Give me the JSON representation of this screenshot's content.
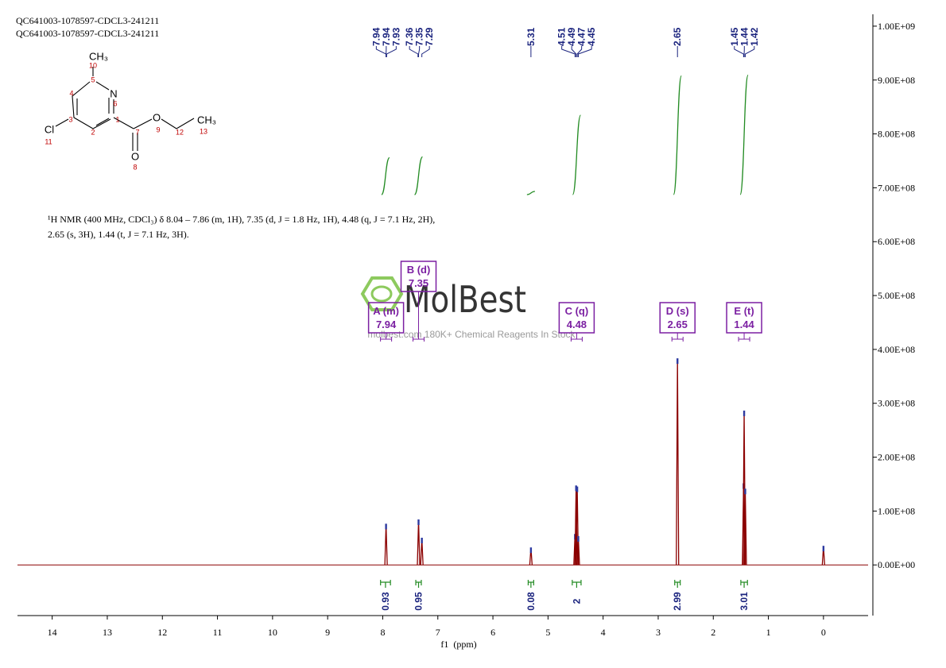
{
  "header": [
    "QC641003-1078597-CDCL3-241211",
    "QC641003-1078597-CDCL3-241211"
  ],
  "structure": [
    "CH₃",
    "10",
    "5",
    "N",
    "6",
    "4",
    "3",
    "1",
    "2",
    "7",
    "O",
    "9",
    "12",
    "CH₃",
    "13",
    "Cl",
    "11",
    "O",
    "8"
  ],
  "description": [
    "¹H NMR (400 MHz, CDCl₃) δ 8.04 – 7.86 (m, 1H), 7.35 (d, J = 1.8 Hz, 1H), 4.48 (q, J = 7.1 Hz, 2H),",
    "2.65 (s, 3H), 1.44 (t, J = 7.1 Hz, 3H)."
  ],
  "watermark": {
    "brand": "MolBest",
    "tagline": "molbest.com 180K+ Chemical Reagents In Stock"
  },
  "chart_data": {
    "type": "nmr",
    "x_label": "f1  (ppm)",
    "xlim": [
      14.63,
      -0.81
    ],
    "xticks": [
      14,
      13,
      12,
      11,
      10,
      9,
      8,
      7,
      6,
      5,
      4,
      3,
      2,
      1,
      0
    ],
    "ylim": [
      -94000000,
      1022000000
    ],
    "yticks": [
      {
        "value": 0,
        "label": "0.00E+00"
      },
      {
        "value": 100000000,
        "label": "1.00E+08"
      },
      {
        "value": 200000000,
        "label": "2.00E+08"
      },
      {
        "value": 300000000,
        "label": "3.00E+08"
      },
      {
        "value": 400000000,
        "label": "4.00E+08"
      },
      {
        "value": 500000000,
        "label": "5.00E+08"
      },
      {
        "value": 600000000,
        "label": "6.00E+08"
      },
      {
        "value": 700000000,
        "label": "7.00E+08"
      },
      {
        "value": 800000000,
        "label": "8.00E+08"
      },
      {
        "value": 900000000,
        "label": "9.00E+08"
      },
      {
        "value": 1000000000,
        "label": "1.00E+09"
      }
    ],
    "color": "#8b0000",
    "x": [
      7.94,
      7.35,
      7.29,
      5.31,
      4.51,
      4.49,
      4.47,
      4.45,
      2.65,
      1.45,
      1.44,
      1.42,
      0
    ],
    "values": [
      75000000,
      83000000,
      49000000,
      31000000,
      56000000,
      146000000,
      144000000,
      52000000,
      382000000,
      150000000,
      285000000,
      140000000,
      34000000
    ],
    "peak_picks": [
      7.94,
      7.94,
      7.93,
      7.36,
      7.35,
      7.29,
      5.31,
      4.51,
      4.49,
      4.47,
      4.45,
      2.65,
      1.45,
      1.44,
      1.42
    ],
    "multiplets": [
      {
        "label": "A (m)",
        "shift": 7.94
      },
      {
        "label": "B (d)",
        "shift": 7.35
      },
      {
        "label": "C (q)",
        "shift": 4.48
      },
      {
        "label": "D (s)",
        "shift": 2.65
      },
      {
        "label": "E (t)",
        "shift": 1.44
      }
    ],
    "integrals": [
      {
        "value": 0.93,
        "range": [
          8.04,
          7.86
        ]
      },
      {
        "value": 0.95,
        "range": [
          7.4,
          7.3
        ]
      },
      {
        "value": 0.08,
        "range": [
          5.36,
          5.26
        ]
      },
      {
        "value": 2.0,
        "range": [
          4.56,
          4.4
        ]
      },
      {
        "value": 2.99,
        "range": [
          2.7,
          2.6
        ]
      },
      {
        "value": 3.01,
        "range": [
          1.5,
          1.38
        ]
      }
    ],
    "integral_color": "#228b22",
    "label_color": "#1a237e",
    "multiplet_color": "#7b1fa2"
  }
}
